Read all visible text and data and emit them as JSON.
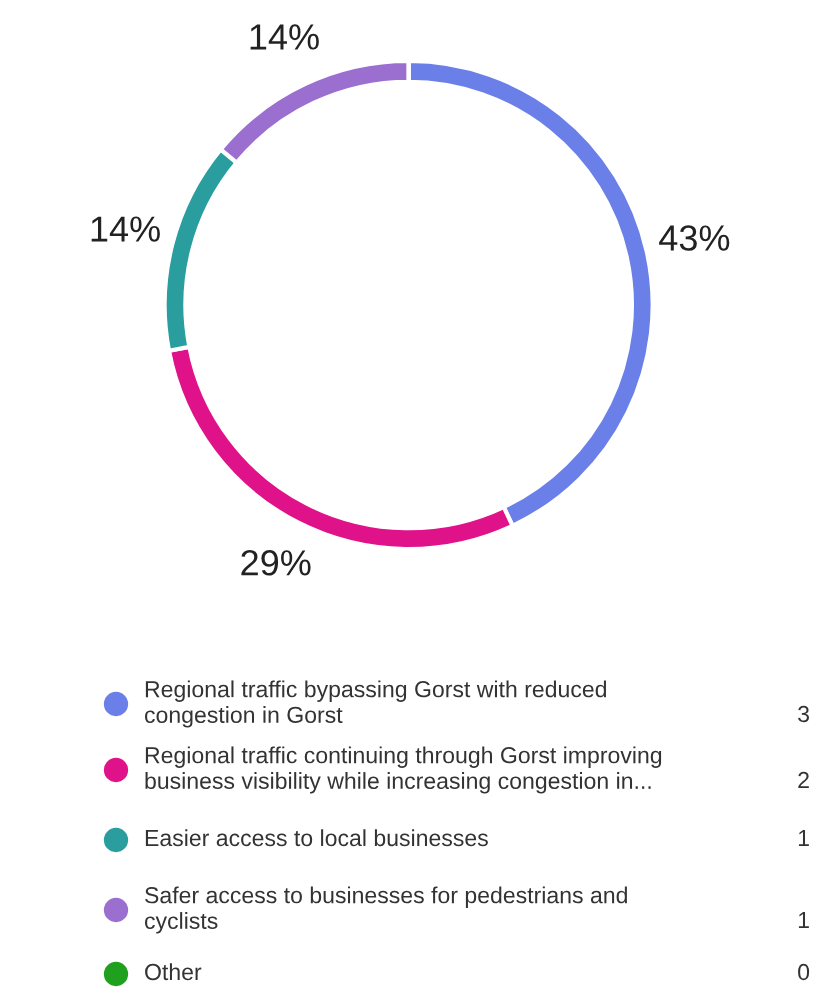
{
  "chart_data": {
    "type": "donut",
    "categories": [
      "Regional traffic bypassing Gorst with reduced\ncongestion in Gorst",
      "Regional traffic continuing through Gorst improving\nbusiness visibility while increasing congestion in...",
      "Easier access to local businesses",
      "Safer access to businesses for pedestrians and\ncyclists",
      "Other"
    ],
    "values": [
      43,
      29,
      14,
      14,
      0
    ],
    "annotations": [
      "3",
      "2",
      "1",
      "1",
      "0"
    ],
    "value_labels": [
      "43%",
      "29%",
      "14%",
      "14%",
      null
    ],
    "colors": [
      "#6b7fe8",
      "#e0128a",
      "#2a9d9e",
      "#9b6fd0",
      "#1fa01f"
    ],
    "legend": "bottom"
  }
}
